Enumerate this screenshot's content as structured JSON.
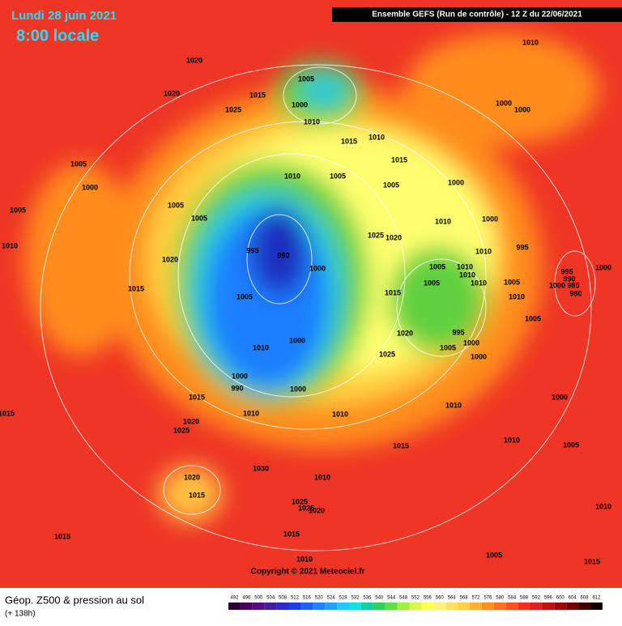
{
  "header": {
    "date": "Lundi 28 juin 2021",
    "time": "8:00 locale",
    "run": "Ensemble GEFS  (Run de contrôle)  -  12 Z du 22/06/2021"
  },
  "isobars": [
    1010,
    1020,
    1005,
    1015,
    1020,
    1000,
    1025,
    1010,
    1000,
    1000,
    1015,
    1010,
    1015,
    1005,
    1000,
    1005,
    1005,
    1010,
    1005,
    1005,
    1000,
    1005,
    1010,
    1000,
    1025,
    1020,
    995,
    1010,
    1020,
    995,
    990,
    1000,
    1005,
    1010,
    1010,
    1010,
    1005,
    1010,
    1005,
    995,
    990,
    1000,
    1000,
    985,
    980,
    1015,
    1005,
    1015,
    1010,
    1005,
    1010,
    1000,
    995,
    1000,
    1020,
    1005,
    1000,
    1025,
    1000,
    990,
    1000,
    1015,
    1000,
    1010,
    1010,
    1010,
    1015,
    1020,
    1025,
    1010,
    1005,
    1015,
    1030,
    1020,
    1010,
    1015,
    1025,
    1025,
    1020,
    1010,
    1015,
    1015,
    1010,
    1005,
    1015
  ],
  "copyright": "Copyright © 2021 Meteociel.fr",
  "footer": {
    "title": "Géop. Z500 & pression au sol",
    "lead": "(+ 138h)"
  },
  "legend": {
    "scale": {
      "values": [
        492,
        496,
        500,
        504,
        508,
        512,
        516,
        520,
        524,
        528,
        532,
        536,
        540,
        544,
        548,
        552,
        556,
        560,
        564,
        568,
        572,
        576,
        580,
        584,
        588,
        592,
        596,
        600,
        604,
        608,
        612
      ],
      "colors": [
        "#2a0030",
        "#4b0060",
        "#5a0a80",
        "#3d1fa0",
        "#2a2ad0",
        "#1b3fe0",
        "#1f5fff",
        "#2080ff",
        "#20a0ff",
        "#20c8ff",
        "#10e0e0",
        "#10d0a0",
        "#30d060",
        "#60e040",
        "#a0f040",
        "#d8f848",
        "#ffff50",
        "#fff080",
        "#ffe060",
        "#ffd040",
        "#ffb030",
        "#ff9020",
        "#ff7020",
        "#ff5020",
        "#f03020",
        "#e02020",
        "#c01010",
        "#a00808",
        "#700000",
        "#400000",
        "#100000"
      ]
    }
  }
}
